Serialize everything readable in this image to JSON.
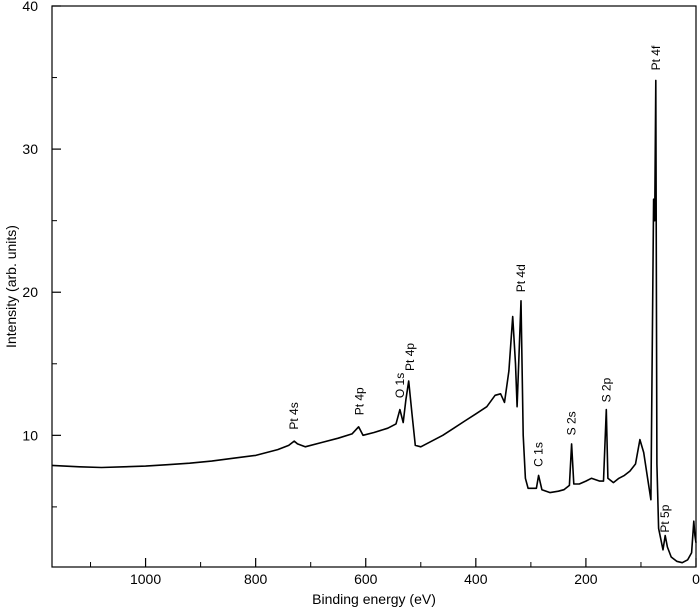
{
  "chart_data": {
    "type": "line",
    "title": "",
    "xlabel": "Binding energy (eV)",
    "ylabel": "Intensity (arb. units)",
    "xlim": [
      1170,
      0
    ],
    "ylim": [
      0.8,
      40
    ],
    "x_reversed": true,
    "grid": false,
    "legend": "none",
    "x_ticks": [
      1000,
      800,
      600,
      400,
      200,
      0
    ],
    "y_ticks": [
      10,
      20,
      30,
      40
    ],
    "series": [
      {
        "color": "#000000",
        "points": [
          [
            1170,
            7.9
          ],
          [
            1120,
            7.8
          ],
          [
            1080,
            7.75
          ],
          [
            1040,
            7.8
          ],
          [
            1000,
            7.85
          ],
          [
            960,
            7.95
          ],
          [
            920,
            8.05
          ],
          [
            880,
            8.2
          ],
          [
            840,
            8.4
          ],
          [
            800,
            8.6
          ],
          [
            760,
            9.0
          ],
          [
            740,
            9.3
          ],
          [
            730,
            9.6
          ],
          [
            724,
            9.4
          ],
          [
            710,
            9.2
          ],
          [
            680,
            9.5
          ],
          [
            650,
            9.8
          ],
          [
            625,
            10.1
          ],
          [
            613,
            10.6
          ],
          [
            605,
            10.0
          ],
          [
            585,
            10.2
          ],
          [
            560,
            10.5
          ],
          [
            545,
            10.8
          ],
          [
            538,
            11.8
          ],
          [
            532,
            10.9
          ],
          [
            527,
            12.5
          ],
          [
            522,
            13.8
          ],
          [
            516,
            11.5
          ],
          [
            510,
            9.3
          ],
          [
            500,
            9.2
          ],
          [
            480,
            9.6
          ],
          [
            460,
            10.0
          ],
          [
            440,
            10.5
          ],
          [
            420,
            11.0
          ],
          [
            400,
            11.5
          ],
          [
            380,
            12.0
          ],
          [
            365,
            12.8
          ],
          [
            355,
            12.9
          ],
          [
            348,
            12.3
          ],
          [
            340,
            14.5
          ],
          [
            333,
            18.3
          ],
          [
            328,
            15.0
          ],
          [
            325,
            12.0
          ],
          [
            318,
            19.4
          ],
          [
            314,
            10.0
          ],
          [
            310,
            7.0
          ],
          [
            305,
            6.3
          ],
          [
            295,
            6.3
          ],
          [
            290,
            6.3
          ],
          [
            286,
            7.2
          ],
          [
            280,
            6.2
          ],
          [
            265,
            6.0
          ],
          [
            250,
            6.1
          ],
          [
            240,
            6.2
          ],
          [
            230,
            6.5
          ],
          [
            226,
            9.4
          ],
          [
            222,
            6.6
          ],
          [
            212,
            6.6
          ],
          [
            200,
            6.8
          ],
          [
            190,
            7.0
          ],
          [
            175,
            6.8
          ],
          [
            168,
            6.8
          ],
          [
            163,
            11.8
          ],
          [
            160,
            7.0
          ],
          [
            150,
            6.7
          ],
          [
            140,
            7.0
          ],
          [
            130,
            7.2
          ],
          [
            120,
            7.5
          ],
          [
            110,
            8.0
          ],
          [
            102,
            9.7
          ],
          [
            95,
            8.8
          ],
          [
            88,
            7.0
          ],
          [
            82,
            5.5
          ],
          [
            77,
            26.5
          ],
          [
            75,
            25.0
          ],
          [
            73,
            34.8
          ],
          [
            71,
            8.0
          ],
          [
            68,
            3.5
          ],
          [
            60,
            2.0
          ],
          [
            56,
            3.0
          ],
          [
            52,
            2.2
          ],
          [
            45,
            1.5
          ],
          [
            35,
            1.2
          ],
          [
            25,
            1.1
          ],
          [
            15,
            1.3
          ],
          [
            8,
            1.8
          ],
          [
            4,
            4.0
          ],
          [
            2,
            3.0
          ],
          [
            0,
            2.5
          ]
        ]
      }
    ],
    "annotations": [
      {
        "text": "Pt 4s",
        "x": 730,
        "y": 10.4
      },
      {
        "text": "Pt 4p",
        "x": 611,
        "y": 11.4
      },
      {
        "text": "O 1s",
        "x": 538,
        "y": 12.6
      },
      {
        "text": "Pt 4p",
        "x": 520,
        "y": 14.5
      },
      {
        "text": "Pt 4d",
        "x": 318,
        "y": 20.0
      },
      {
        "text": "C 1s",
        "x": 286,
        "y": 7.8
      },
      {
        "text": "S 2s",
        "x": 226,
        "y": 10.0
      },
      {
        "text": "S 2p",
        "x": 163,
        "y": 12.3
      },
      {
        "text": "Pt 4f",
        "x": 73,
        "y": 35.5
      },
      {
        "text": "Pt 5p",
        "x": 56,
        "y": 3.2
      }
    ]
  }
}
